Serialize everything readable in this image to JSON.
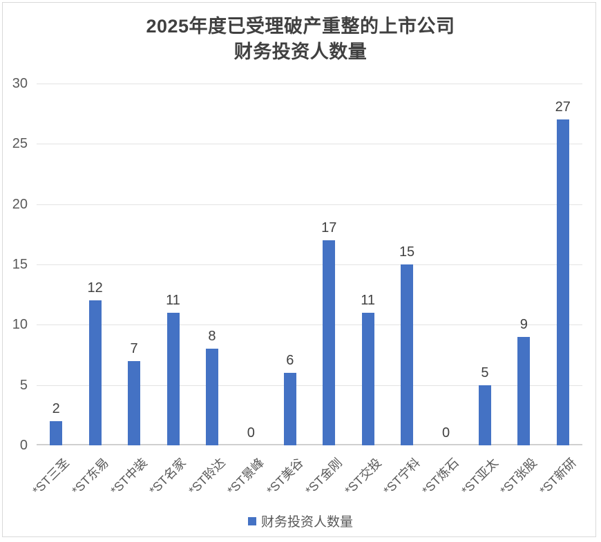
{
  "title": {
    "line1": "2025年度已受理破产重整的上市公司",
    "line2": "财务投资人数量"
  },
  "legend": {
    "label": "财务投资人数量",
    "swatch_color": "#4472C4"
  },
  "chart_data": {
    "type": "bar",
    "title": "2025年度已受理破产重整的上市公司财务投资人数量",
    "categories": [
      "*ST三圣",
      "*ST东易",
      "*ST中装",
      "*ST名家",
      "*ST聆达",
      "*ST景峰",
      "*ST美谷",
      "*ST金刚",
      "*ST交投",
      "*ST宁科",
      "*ST炼石",
      "*ST亚太",
      "*ST张股",
      "*ST新研"
    ],
    "values": [
      2,
      12,
      7,
      11,
      8,
      0,
      6,
      17,
      11,
      15,
      0,
      5,
      9,
      27
    ],
    "series": [
      {
        "name": "财务投资人数量",
        "values": [
          2,
          12,
          7,
          11,
          8,
          0,
          6,
          17,
          11,
          15,
          0,
          5,
          9,
          27
        ]
      }
    ],
    "xlabel": "",
    "ylabel": "",
    "ylim": [
      0,
      30
    ],
    "yticks": [
      0,
      5,
      10,
      15,
      20,
      25,
      30
    ],
    "grid": true,
    "data_labels": true,
    "legend_position": "bottom",
    "bar_color": "#4472C4",
    "x_label_rotation_deg": 45
  }
}
